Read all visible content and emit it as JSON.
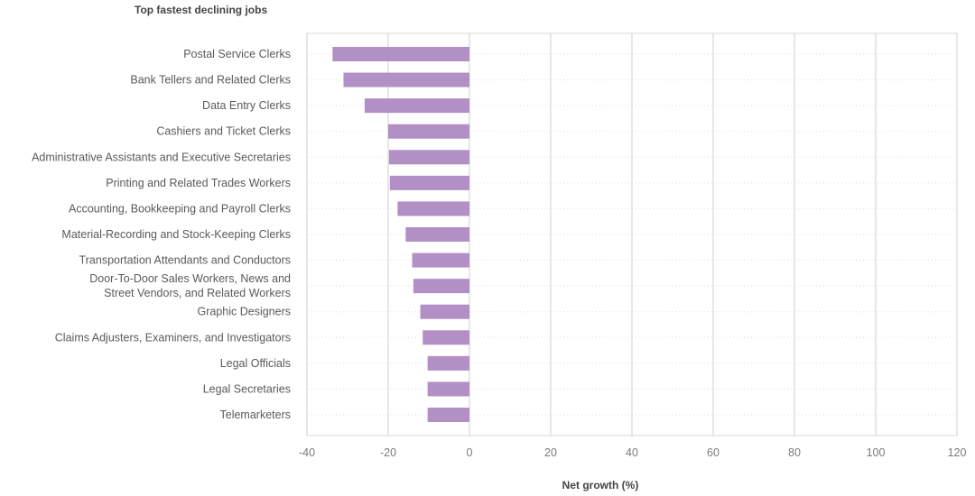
{
  "chart_data": {
    "type": "bar",
    "orientation": "horizontal",
    "title": "Top fastest declining jobs",
    "xlabel": "Net growth (%)",
    "ylabel": "",
    "xlim": [
      -40,
      120
    ],
    "xticks": [
      -40,
      -20,
      0,
      20,
      40,
      60,
      80,
      100,
      120
    ],
    "grid": true,
    "bar_color": "#b28fc4",
    "categories": [
      [
        "Postal Service Clerks"
      ],
      [
        "Bank Tellers and Related Clerks"
      ],
      [
        "Data Entry Clerks"
      ],
      [
        "Cashiers and Ticket Clerks"
      ],
      [
        "Administrative Assistants and Executive Secretaries"
      ],
      [
        "Printing and Related Trades Workers"
      ],
      [
        "Accounting, Bookkeeping and Payroll Clerks"
      ],
      [
        "Material-Recording and Stock-Keeping Clerks"
      ],
      [
        "Transportation Attendants and Conductors"
      ],
      [
        "Door-To-Door Sales Workers, News and",
        "Street Vendors, and Related Workers"
      ],
      [
        "Graphic Designers"
      ],
      [
        "Claims Adjusters, Examiners, and Investigators"
      ],
      [
        "Legal Officials"
      ],
      [
        "Legal Secretaries"
      ],
      [
        "Telemarketers"
      ]
    ],
    "values": [
      -33.7,
      -31,
      -25.8,
      -20,
      -19.8,
      -19.6,
      -17.7,
      -15.7,
      -14.1,
      -13.8,
      -12.1,
      -11.5,
      -10.3,
      -10.3,
      -10.3
    ]
  }
}
